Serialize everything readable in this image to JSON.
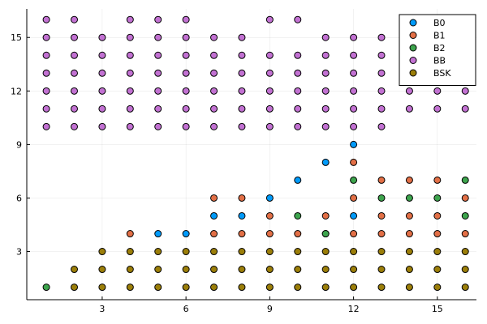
{
  "chart_data": {
    "type": "scatter",
    "title": "",
    "xlabel": "",
    "ylabel": "",
    "xlim": [
      0.3,
      16.4
    ],
    "ylim": [
      0.3,
      16.6
    ],
    "xticks": [
      3,
      6,
      9,
      12,
      15
    ],
    "yticks": [
      3,
      6,
      9,
      12,
      15
    ],
    "grid": true,
    "legend_position": "top-right",
    "series": [
      {
        "name": "B0",
        "color": "#009af9",
        "points": [
          [
            5,
            4
          ],
          [
            6,
            4
          ],
          [
            7,
            5
          ],
          [
            8,
            5
          ],
          [
            9,
            6
          ],
          [
            10,
            7
          ],
          [
            11,
            8
          ],
          [
            12,
            5
          ],
          [
            12,
            9
          ]
        ]
      },
      {
        "name": "B1",
        "color": "#e26f46",
        "points": [
          [
            4,
            4
          ],
          [
            7,
            4
          ],
          [
            7,
            6
          ],
          [
            8,
            4
          ],
          [
            8,
            6
          ],
          [
            9,
            4
          ],
          [
            9,
            5
          ],
          [
            10,
            4
          ],
          [
            11,
            4
          ],
          [
            11,
            5
          ],
          [
            12,
            4
          ],
          [
            12,
            6
          ],
          [
            12,
            8
          ],
          [
            13,
            4
          ],
          [
            13,
            5
          ],
          [
            13,
            7
          ],
          [
            14,
            4
          ],
          [
            14,
            5
          ],
          [
            14,
            7
          ],
          [
            15,
            4
          ],
          [
            15,
            5
          ],
          [
            15,
            7
          ],
          [
            16,
            4
          ],
          [
            16,
            6
          ]
        ]
      },
      {
        "name": "B2",
        "color": "#3da44d",
        "points": [
          [
            1,
            1
          ],
          [
            10,
            5
          ],
          [
            11,
            4
          ],
          [
            12,
            7
          ],
          [
            13,
            6
          ],
          [
            14,
            6
          ],
          [
            15,
            6
          ],
          [
            16,
            5
          ],
          [
            16,
            7
          ]
        ]
      },
      {
        "name": "BB",
        "color": "#c271d2",
        "points": [
          [
            1,
            10
          ],
          [
            1,
            11
          ],
          [
            1,
            12
          ],
          [
            1,
            13
          ],
          [
            1,
            14
          ],
          [
            1,
            15
          ],
          [
            1,
            16
          ],
          [
            2,
            10
          ],
          [
            2,
            11
          ],
          [
            2,
            12
          ],
          [
            2,
            13
          ],
          [
            2,
            14
          ],
          [
            2,
            15
          ],
          [
            2,
            16
          ],
          [
            3,
            10
          ],
          [
            3,
            11
          ],
          [
            3,
            12
          ],
          [
            3,
            13
          ],
          [
            3,
            14
          ],
          [
            3,
            15
          ],
          [
            4,
            10
          ],
          [
            4,
            11
          ],
          [
            4,
            12
          ],
          [
            4,
            13
          ],
          [
            4,
            14
          ],
          [
            4,
            15
          ],
          [
            4,
            16
          ],
          [
            5,
            10
          ],
          [
            5,
            11
          ],
          [
            5,
            12
          ],
          [
            5,
            13
          ],
          [
            5,
            14
          ],
          [
            5,
            15
          ],
          [
            5,
            16
          ],
          [
            6,
            10
          ],
          [
            6,
            11
          ],
          [
            6,
            12
          ],
          [
            6,
            13
          ],
          [
            6,
            14
          ],
          [
            6,
            15
          ],
          [
            6,
            16
          ],
          [
            7,
            10
          ],
          [
            7,
            11
          ],
          [
            7,
            12
          ],
          [
            7,
            13
          ],
          [
            7,
            14
          ],
          [
            7,
            15
          ],
          [
            8,
            10
          ],
          [
            8,
            11
          ],
          [
            8,
            12
          ],
          [
            8,
            13
          ],
          [
            8,
            14
          ],
          [
            8,
            15
          ],
          [
            9,
            10
          ],
          [
            9,
            11
          ],
          [
            9,
            12
          ],
          [
            9,
            13
          ],
          [
            9,
            14
          ],
          [
            9,
            16
          ],
          [
            10,
            10
          ],
          [
            10,
            11
          ],
          [
            10,
            12
          ],
          [
            10,
            13
          ],
          [
            10,
            14
          ],
          [
            10,
            16
          ],
          [
            11,
            10
          ],
          [
            11,
            11
          ],
          [
            11,
            12
          ],
          [
            11,
            13
          ],
          [
            11,
            14
          ],
          [
            11,
            15
          ],
          [
            12,
            10
          ],
          [
            12,
            11
          ],
          [
            12,
            12
          ],
          [
            12,
            13
          ],
          [
            12,
            14
          ],
          [
            12,
            15
          ],
          [
            13,
            10
          ],
          [
            13,
            11
          ],
          [
            13,
            12
          ],
          [
            13,
            13
          ],
          [
            13,
            14
          ],
          [
            13,
            15
          ],
          [
            14,
            11
          ],
          [
            14,
            12
          ],
          [
            14,
            13
          ],
          [
            14,
            14
          ],
          [
            14,
            16
          ],
          [
            15,
            11
          ],
          [
            15,
            12
          ],
          [
            15,
            13
          ],
          [
            15,
            16
          ],
          [
            16,
            11
          ],
          [
            16,
            12
          ],
          [
            16,
            14
          ],
          [
            16,
            15
          ]
        ]
      },
      {
        "name": "BSK",
        "color": "#9b7e09",
        "points": [
          [
            2,
            1
          ],
          [
            2,
            2
          ],
          [
            3,
            1
          ],
          [
            3,
            2
          ],
          [
            3,
            3
          ],
          [
            4,
            1
          ],
          [
            4,
            2
          ],
          [
            4,
            3
          ],
          [
            5,
            1
          ],
          [
            5,
            2
          ],
          [
            5,
            3
          ],
          [
            6,
            1
          ],
          [
            6,
            2
          ],
          [
            6,
            3
          ],
          [
            7,
            1
          ],
          [
            7,
            2
          ],
          [
            7,
            3
          ],
          [
            8,
            1
          ],
          [
            8,
            2
          ],
          [
            8,
            3
          ],
          [
            9,
            1
          ],
          [
            9,
            2
          ],
          [
            9,
            3
          ],
          [
            10,
            1
          ],
          [
            10,
            2
          ],
          [
            10,
            3
          ],
          [
            11,
            1
          ],
          [
            11,
            2
          ],
          [
            11,
            3
          ],
          [
            12,
            1
          ],
          [
            12,
            2
          ],
          [
            12,
            3
          ],
          [
            13,
            1
          ],
          [
            13,
            2
          ],
          [
            13,
            3
          ],
          [
            14,
            1
          ],
          [
            14,
            2
          ],
          [
            14,
            3
          ],
          [
            15,
            1
          ],
          [
            15,
            2
          ],
          [
            15,
            3
          ],
          [
            16,
            1
          ],
          [
            16,
            2
          ],
          [
            16,
            3
          ]
        ]
      }
    ]
  }
}
